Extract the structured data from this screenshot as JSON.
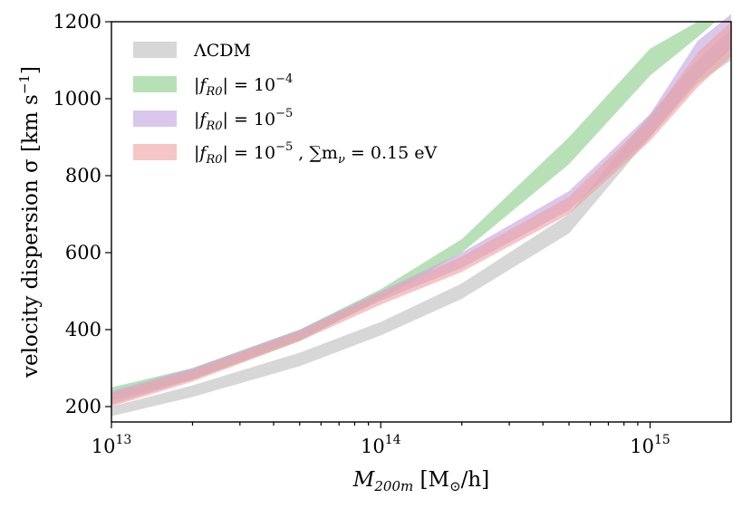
{
  "chart_data": {
    "type": "area",
    "xscale": "log",
    "xlim": [
      10000000000000.0,
      2000000000000000.0
    ],
    "ylim": [
      160,
      1200
    ],
    "xlabel": "M_200m [M_⊙/h]",
    "ylabel": "velocity dispersion σ [km s⁻¹]",
    "x_ticks": [
      {
        "value": 10000000000000.0,
        "base": "10",
        "exp": "13"
      },
      {
        "value": 100000000000000.0,
        "base": "10",
        "exp": "14"
      },
      {
        "value": 1000000000000000.0,
        "base": "10",
        "exp": "15"
      }
    ],
    "y_ticks": [
      {
        "value": 200,
        "label": "200"
      },
      {
        "value": 400,
        "label": "400"
      },
      {
        "value": 600,
        "label": "600"
      },
      {
        "value": 800,
        "label": "800"
      },
      {
        "value": 1000,
        "label": "1000"
      },
      {
        "value": 1200,
        "label": "1200"
      }
    ],
    "legend_position": "top-left",
    "series": [
      {
        "name": "ΛCDM",
        "color": "#bdbdbd",
        "opacity": 0.6,
        "x": [
          10000000000000.0,
          20000000000000.0,
          50000000000000.0,
          100000000000000.0,
          200000000000000.0,
          500000000000000.0,
          1000000000000000.0,
          1500000000000000.0,
          2000000000000000.0
        ],
        "lower": [
          175,
          225,
          305,
          385,
          480,
          650,
          900,
          1040,
          1100
        ],
        "upper": [
          200,
          255,
          340,
          420,
          520,
          700,
          960,
          1100,
          1180
        ]
      },
      {
        "name": "|f_R0| = 10^-4",
        "color": "#90d090",
        "opacity": 0.65,
        "x": [
          10000000000000.0,
          20000000000000.0,
          50000000000000.0,
          100000000000000.0,
          200000000000000.0,
          500000000000000.0,
          1000000000000000.0,
          1500000000000000.0,
          1750000000000000.0
        ],
        "lower": [
          215,
          270,
          370,
          480,
          600,
          830,
          1060,
          1160,
          1200
        ],
        "upper": [
          250,
          300,
          400,
          505,
          635,
          900,
          1130,
          1200,
          1200
        ]
      },
      {
        "name": "|f_R0| = 10^-5",
        "color": "#c4aae0",
        "opacity": 0.65,
        "x": [
          10000000000000.0,
          20000000000000.0,
          50000000000000.0,
          100000000000000.0,
          200000000000000.0,
          500000000000000.0,
          1000000000000000.0,
          1500000000000000.0,
          2000000000000000.0
        ],
        "lower": [
          205,
          270,
          375,
          475,
          560,
          710,
          900,
          1050,
          1130
        ],
        "upper": [
          240,
          300,
          400,
          500,
          600,
          760,
          960,
          1150,
          1220
        ]
      },
      {
        "name": "|f_R0| = 10^-5 , ∑m_ν = 0.15 eV",
        "color": "#f0a0a0",
        "opacity": 0.6,
        "x": [
          10000000000000.0,
          20000000000000.0,
          50000000000000.0,
          100000000000000.0,
          200000000000000.0,
          500000000000000.0,
          1000000000000000.0,
          1500000000000000.0,
          2000000000000000.0
        ],
        "lower": [
          200,
          265,
          370,
          465,
          550,
          700,
          890,
          1030,
          1110
        ],
        "upper": [
          235,
          295,
          395,
          495,
          590,
          745,
          950,
          1120,
          1200
        ]
      }
    ]
  },
  "legend": [
    {
      "prefix": "ΛCDM",
      "sup": "",
      "suffix": ""
    },
    {
      "prefix": "|f",
      "sub": "R0",
      "mid": "| = 10",
      "sup": "−4",
      "suffix": ""
    },
    {
      "prefix": "|f",
      "sub": "R0",
      "mid": "| = 10",
      "sup": "−5",
      "suffix": ""
    },
    {
      "prefix": "|f",
      "sub": "R0",
      "mid": "| = 10",
      "sup": "−5",
      "suffix": " , ∑m",
      "sub2": "ν",
      "suffix2": " = 0.15 eV"
    }
  ],
  "labels": {
    "x_main": "M",
    "x_sub": "200m",
    "x_rest": " [M",
    "x_sub2": "⊙",
    "x_end": "/h]",
    "y_main": "velocity dispersion σ [km s",
    "y_sup": "−1",
    "y_end": "]"
  }
}
